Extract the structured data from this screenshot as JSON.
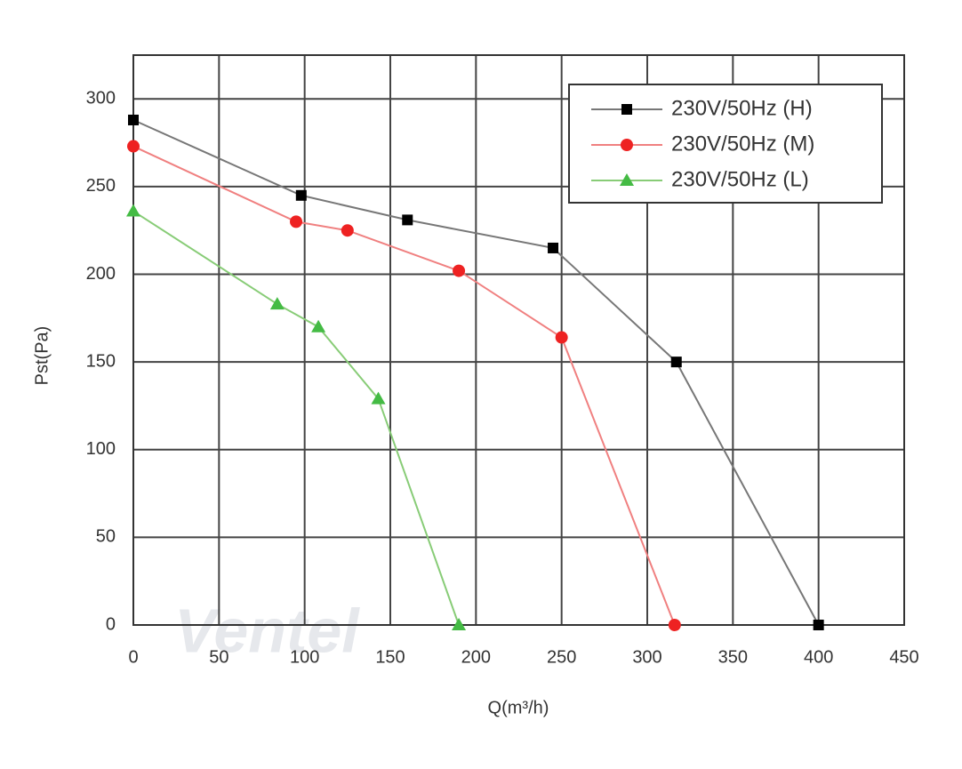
{
  "chart_data": {
    "type": "line",
    "xlabel": "Q(m³/h)",
    "ylabel": "Pst(Pa)",
    "xlim": [
      0,
      450
    ],
    "ylim": [
      0,
      325
    ],
    "xticks": [
      0,
      50,
      100,
      150,
      200,
      250,
      300,
      350,
      400,
      450
    ],
    "yticks": [
      0,
      50,
      100,
      150,
      200,
      250,
      300
    ],
    "grid": true,
    "legend": "upper right",
    "watermark": "Ventel",
    "series": [
      {
        "name": "230V/50Hz (H)",
        "color": "#000000",
        "line_color": "#777777",
        "marker": "square",
        "x": [
          0,
          98,
          160,
          245,
          317,
          400
        ],
        "values": [
          288,
          245,
          231,
          215,
          150,
          0
        ]
      },
      {
        "name": "230V/50Hz (M)",
        "color": "#ee2222",
        "line_color": "#f08080",
        "marker": "circle",
        "x": [
          0,
          95,
          125,
          190,
          250,
          316
        ],
        "values": [
          273,
          230,
          225,
          202,
          164,
          0
        ]
      },
      {
        "name": "230V/50Hz (L)",
        "color": "#44bb44",
        "line_color": "#88cc77",
        "marker": "triangle",
        "x": [
          0,
          84,
          108,
          143,
          190
        ],
        "values": [
          236,
          183,
          170,
          129,
          0
        ]
      }
    ]
  }
}
